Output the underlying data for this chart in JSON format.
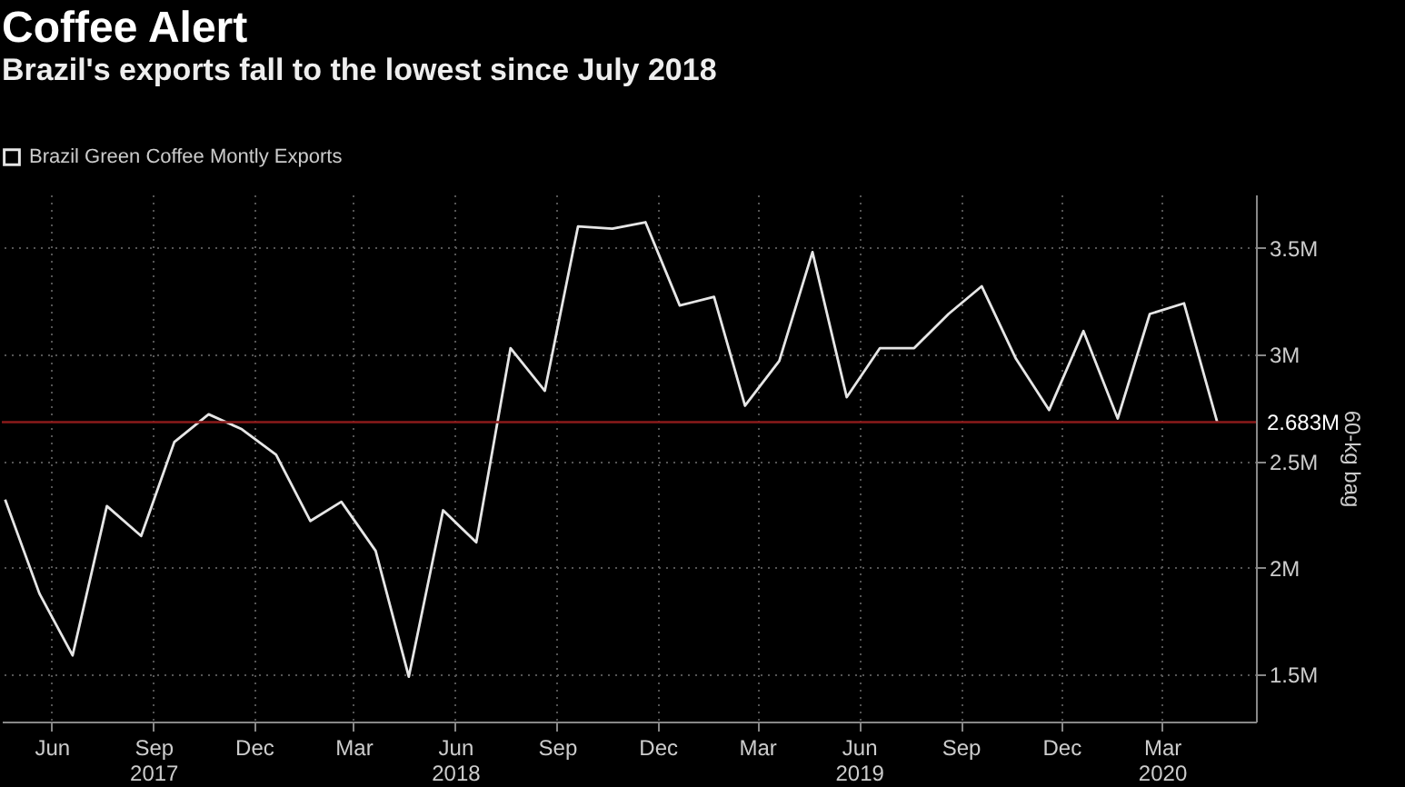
{
  "chart_data": {
    "type": "line",
    "title": "Coffee Alert",
    "subtitle": "Brazil's exports fall to the lowest since July 2018",
    "ylabel": "60-kg bag",
    "x": [
      "2017-05",
      "2017-06",
      "2017-07",
      "2017-08",
      "2017-09",
      "2017-10",
      "2017-11",
      "2017-12",
      "2018-01",
      "2018-02",
      "2018-03",
      "2018-04",
      "2018-05",
      "2018-06",
      "2018-07",
      "2018-08",
      "2018-09",
      "2018-10",
      "2018-11",
      "2018-12",
      "2019-01",
      "2019-02",
      "2019-03",
      "2019-04",
      "2019-05",
      "2019-06",
      "2019-07",
      "2019-08",
      "2019-09",
      "2019-10",
      "2019-11",
      "2019-12",
      "2020-01",
      "2020-02",
      "2020-03",
      "2020-04",
      "2020-05"
    ],
    "series": [
      {
        "name": "Brazil Green Coffee Montly Exports",
        "color": "#e6e6e6",
        "values": [
          2.32,
          1.88,
          1.59,
          2.29,
          2.15,
          2.59,
          2.72,
          2.65,
          2.53,
          2.22,
          2.31,
          2.08,
          1.49,
          2.27,
          2.12,
          3.03,
          2.83,
          3.6,
          3.59,
          3.62,
          3.23,
          3.27,
          2.76,
          2.97,
          3.48,
          2.8,
          3.03,
          3.03,
          3.19,
          3.32,
          2.98,
          2.74,
          3.11,
          2.7,
          3.19,
          3.24,
          2.683
        ]
      }
    ],
    "xlim": [
      "2017-04-28",
      "2020-06-05"
    ],
    "xticks": [
      {
        "value": "2017-06-12",
        "label": "Jun"
      },
      {
        "value": "2017-09-12",
        "label": "Sep\n2017"
      },
      {
        "value": "2017-12-12",
        "label": "Dec"
      },
      {
        "value": "2018-03-12",
        "label": "Mar"
      },
      {
        "value": "2018-06-12",
        "label": "Jun\n2018"
      },
      {
        "value": "2018-09-12",
        "label": "Sep"
      },
      {
        "value": "2018-12-12",
        "label": "Dec"
      },
      {
        "value": "2019-03-12",
        "label": "Mar"
      },
      {
        "value": "2019-06-12",
        "label": "Jun\n2019"
      },
      {
        "value": "2019-09-12",
        "label": "Sep"
      },
      {
        "value": "2019-12-12",
        "label": "Dec"
      },
      {
        "value": "2020-03-12",
        "label": "Mar\n2020"
      }
    ],
    "ylim": [
      1.28,
      3.75
    ],
    "yticks": [
      {
        "value": 1.5,
        "label": "1.5M"
      },
      {
        "value": 2,
        "label": "2M"
      },
      {
        "value": 2.5,
        "label": "2.5M"
      },
      {
        "value": 3,
        "label": "3M"
      },
      {
        "value": 3.5,
        "label": "3.5M"
      }
    ],
    "ref_lines": [
      {
        "axis": "y",
        "value": 2.683,
        "label": "2.683M",
        "color": "#8b1a1a"
      }
    ],
    "grid": true,
    "legend": "top left",
    "marker": "none",
    "line_style": "solid"
  }
}
